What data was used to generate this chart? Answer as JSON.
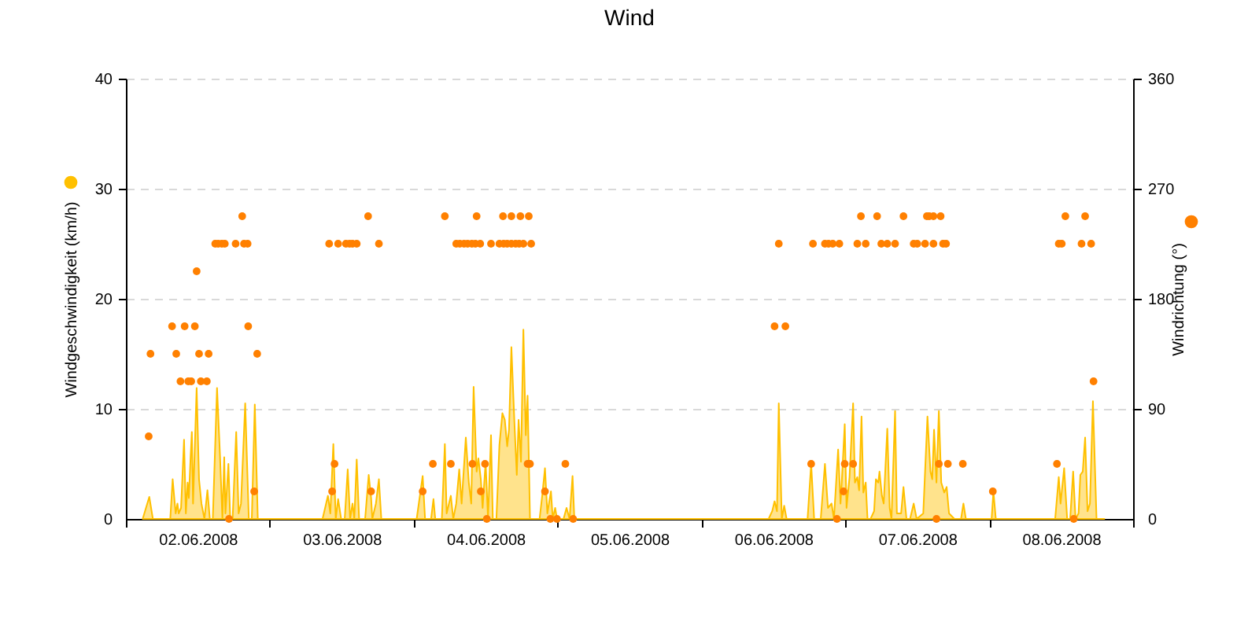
{
  "chart_data": {
    "type": "area",
    "title": "Wind",
    "legend": "left",
    "xlim": [
      "2008-06-02T00:00",
      "2008-06-09T00:00"
    ],
    "xticks": [
      {
        "value": "2008-06-02T00:00",
        "label": null
      },
      {
        "value": "2008-06-02T12:00",
        "label": "02.06.2008"
      },
      {
        "value": "2008-06-03T00:00",
        "label": null
      },
      {
        "value": "2008-06-03T12:00",
        "label": "03.06.2008"
      },
      {
        "value": "2008-06-04T00:00",
        "label": null
      },
      {
        "value": "2008-06-04T12:00",
        "label": "04.06.2008"
      },
      {
        "value": "2008-06-05T00:00",
        "label": null
      },
      {
        "value": "2008-06-05T12:00",
        "label": "05.06.2008"
      },
      {
        "value": "2008-06-06T00:00",
        "label": null
      },
      {
        "value": "2008-06-06T12:00",
        "label": "06.06.2008"
      },
      {
        "value": "2008-06-07T00:00",
        "label": null
      },
      {
        "value": "2008-06-07T12:00",
        "label": "07.06.2008"
      },
      {
        "value": "2008-06-08T00:00",
        "label": null
      },
      {
        "value": "2008-06-08T12:00",
        "label": "08.06.2008"
      },
      {
        "value": "2008-06-09T00:00",
        "label": null
      }
    ],
    "ylim": [
      0,
      40
    ],
    "yticks": [
      0,
      10,
      20,
      30,
      40
    ],
    "y2lim": [
      0,
      360
    ],
    "y2ticks": [
      0,
      90,
      180,
      270,
      360
    ],
    "grid": "y",
    "series": [
      {
        "name": "Windgeschwindigkeit (km/h)",
        "color": "#ffc000",
        "x": [
          "2008-06-02T02:48",
          "2008-06-02T03:54",
          "2008-06-02T04:30",
          "2008-06-02T07:24",
          "2008-06-02T07:48",
          "2008-06-02T08:18",
          "2008-06-02T08:36",
          "2008-06-02T08:48",
          "2008-06-02T09:12",
          "2008-06-02T09:42",
          "2008-06-02T10:00",
          "2008-06-02T10:18",
          "2008-06-02T10:30",
          "2008-06-02T10:48",
          "2008-06-02T11:00",
          "2008-06-02T11:12",
          "2008-06-02T11:48",
          "2008-06-02T12:12",
          "2008-06-02T12:36",
          "2008-06-02T13:06",
          "2008-06-02T13:36",
          "2008-06-02T14:00",
          "2008-06-02T14:30",
          "2008-06-02T15:12",
          "2008-06-02T15:42",
          "2008-06-02T16:06",
          "2008-06-02T16:24",
          "2008-06-02T16:36",
          "2008-06-02T17:06",
          "2008-06-02T17:24",
          "2008-06-02T17:48",
          "2008-06-02T18:24",
          "2008-06-02T18:48",
          "2008-06-02T19:12",
          "2008-06-02T19:54",
          "2008-06-02T20:30",
          "2008-06-02T21:00",
          "2008-06-02T21:30",
          "2008-06-02T22:00",
          "2008-06-03T08:48",
          "2008-06-03T09:42",
          "2008-06-03T10:06",
          "2008-06-03T10:36",
          "2008-06-03T11:00",
          "2008-06-03T11:24",
          "2008-06-03T11:54",
          "2008-06-03T12:30",
          "2008-06-03T13:00",
          "2008-06-03T13:24",
          "2008-06-03T13:48",
          "2008-06-03T14:06",
          "2008-06-03T14:30",
          "2008-06-03T14:54",
          "2008-06-03T15:54",
          "2008-06-03T16:30",
          "2008-06-03T16:54",
          "2008-06-03T17:06",
          "2008-06-03T17:42",
          "2008-06-03T18:12",
          "2008-06-03T18:36",
          "2008-06-04T00:30",
          "2008-06-04T01:30",
          "2008-06-04T01:54",
          "2008-06-04T02:54",
          "2008-06-04T03:18",
          "2008-06-04T03:36",
          "2008-06-04T04:42",
          "2008-06-04T05:12",
          "2008-06-04T05:30",
          "2008-06-04T06:12",
          "2008-06-04T06:36",
          "2008-06-04T07:06",
          "2008-06-04T07:36",
          "2008-06-04T08:00",
          "2008-06-04T08:42",
          "2008-06-04T09:12",
          "2008-06-04T09:36",
          "2008-06-04T10:00",
          "2008-06-04T10:30",
          "2008-06-04T10:48",
          "2008-06-04T11:12",
          "2008-06-04T11:30",
          "2008-06-04T12:00",
          "2008-06-04T12:24",
          "2008-06-04T12:54",
          "2008-06-04T13:12",
          "2008-06-04T13:48",
          "2008-06-04T14:18",
          "2008-06-04T14:48",
          "2008-06-04T15:12",
          "2008-06-04T15:36",
          "2008-06-04T15:54",
          "2008-06-04T16:18",
          "2008-06-04T16:48",
          "2008-06-04T17:12",
          "2008-06-04T17:30",
          "2008-06-04T17:54",
          "2008-06-04T18:18",
          "2008-06-04T18:42",
          "2008-06-04T19:00",
          "2008-06-04T19:24",
          "2008-06-04T21:00",
          "2008-06-04T21:24",
          "2008-06-04T21:54",
          "2008-06-04T22:18",
          "2008-06-04T22:54",
          "2008-06-04T23:12",
          "2008-06-04T23:36",
          "2008-06-04T23:54",
          "2008-06-05T01:00",
          "2008-06-05T01:30",
          "2008-06-05T02:00",
          "2008-06-05T02:30",
          "2008-06-05T02:48",
          "2008-06-06T11:12",
          "2008-06-06T11:48",
          "2008-06-06T12:12",
          "2008-06-06T12:36",
          "2008-06-06T12:54",
          "2008-06-06T13:24",
          "2008-06-06T13:48",
          "2008-06-06T14:12",
          "2008-06-06T17:42",
          "2008-06-06T18:18",
          "2008-06-06T18:48",
          "2008-06-06T19:54",
          "2008-06-06T20:36",
          "2008-06-06T21:06",
          "2008-06-06T21:42",
          "2008-06-06T22:06",
          "2008-06-06T22:48",
          "2008-06-06T23:12",
          "2008-06-06T23:24",
          "2008-06-06T23:54",
          "2008-06-07T00:12",
          "2008-06-07T00:42",
          "2008-06-07T01:18",
          "2008-06-07T01:36",
          "2008-06-07T02:00",
          "2008-06-07T02:18",
          "2008-06-07T02:42",
          "2008-06-07T03:00",
          "2008-06-07T03:24",
          "2008-06-07T03:42",
          "2008-06-07T04:12",
          "2008-06-07T04:48",
          "2008-06-07T05:06",
          "2008-06-07T05:30",
          "2008-06-07T05:42",
          "2008-06-07T06:06",
          "2008-06-07T06:24",
          "2008-06-07T07:00",
          "2008-06-07T07:24",
          "2008-06-07T07:42",
          "2008-06-07T08:18",
          "2008-06-07T08:36",
          "2008-06-07T09:18",
          "2008-06-07T09:42",
          "2008-06-07T10:12",
          "2008-06-07T10:48",
          "2008-06-07T11:24",
          "2008-06-07T11:54",
          "2008-06-07T13:00",
          "2008-06-07T13:42",
          "2008-06-07T14:12",
          "2008-06-07T14:30",
          "2008-06-07T14:48",
          "2008-06-07T15:12",
          "2008-06-07T15:36",
          "2008-06-07T16:00",
          "2008-06-07T16:30",
          "2008-06-07T16:54",
          "2008-06-07T17:18",
          "2008-06-07T18:12",
          "2008-06-07T19:18",
          "2008-06-07T19:42",
          "2008-06-07T20:06",
          "2008-06-08T00:24",
          "2008-06-08T00:42",
          "2008-06-08T01:06",
          "2008-06-08T10:24",
          "2008-06-08T11:00",
          "2008-06-08T11:36",
          "2008-06-08T11:54",
          "2008-06-08T12:30",
          "2008-06-08T13:00",
          "2008-06-08T13:30",
          "2008-06-08T14:00",
          "2008-06-08T14:24",
          "2008-06-08T14:54",
          "2008-06-08T15:12",
          "2008-06-08T15:36",
          "2008-06-08T16:00",
          "2008-06-08T16:24",
          "2008-06-08T16:48",
          "2008-06-08T17:18",
          "2008-06-08T17:54",
          "2008-06-08T19:12"
        ],
        "values": [
          0,
          2.0,
          0,
          0,
          3.6,
          0.5,
          1.4,
          0.5,
          1.0,
          7.2,
          0.5,
          3.3,
          1.9,
          5.7,
          7.9,
          1.4,
          11.9,
          3.6,
          1.4,
          0,
          2.6,
          0,
          0,
          11.9,
          5.7,
          0,
          5.6,
          0.5,
          5.0,
          0,
          0,
          7.9,
          0.5,
          1.4,
          10.5,
          0,
          0,
          10.4,
          0,
          0,
          2.1,
          0.5,
          6.8,
          0,
          1.8,
          0,
          0,
          4.5,
          0,
          1.4,
          0,
          5.4,
          0,
          0,
          4.0,
          1.9,
          0,
          1.4,
          3.6,
          0,
          0,
          3.9,
          0,
          0,
          1.8,
          0,
          0,
          6.8,
          0.5,
          2.1,
          0,
          1.4,
          4.5,
          1.4,
          7.4,
          3.3,
          1.4,
          12.0,
          4.3,
          5.5,
          3.6,
          1.0,
          5.2,
          0,
          7.6,
          0,
          0,
          6.7,
          9.6,
          9.0,
          6.6,
          8.1,
          15.6,
          8.8,
          4.0,
          9.0,
          5.2,
          17.2,
          7.6,
          11.2,
          0,
          0,
          1.9,
          4.6,
          0.5,
          2.5,
          0,
          1.0,
          0,
          0,
          1.0,
          0,
          3.9,
          0,
          0,
          0.7,
          1.6,
          0.7,
          10.5,
          0,
          1.2,
          0,
          0,
          5.0,
          0,
          0,
          5.0,
          1.0,
          1.4,
          0,
          6.3,
          1.4,
          3.3,
          8.6,
          1.0,
          3.8,
          10.5,
          3.3,
          3.8,
          2.6,
          9.3,
          2.4,
          3.3,
          0,
          0,
          0.7,
          3.6,
          3.3,
          4.3,
          2.1,
          1.4,
          8.2,
          1.0,
          0,
          9.8,
          0.5,
          0.5,
          2.9,
          0,
          0,
          1.4,
          0,
          0.5,
          9.3,
          4.3,
          3.6,
          8.1,
          3.3,
          9.8,
          3.3,
          2.4,
          2.9,
          0.5,
          0,
          0,
          1.4,
          0,
          0,
          2.5,
          0,
          0,
          0,
          3.8,
          1.4,
          4.6,
          0,
          0,
          4.3,
          0,
          0.5,
          4.0,
          4.3,
          7.4,
          0.7,
          1.4,
          10.7,
          0,
          0
        ]
      },
      {
        "name": "Windrichtung (°)",
        "type": "scatter",
        "axis": "y2",
        "color": "#ff8000",
        "x": [
          "2008-06-02T03:48",
          "2008-06-02T04:06",
          "2008-06-02T07:42",
          "2008-06-02T08:24",
          "2008-06-02T09:06",
          "2008-06-02T09:48",
          "2008-06-02T10:24",
          "2008-06-02T10:54",
          "2008-06-02T11:30",
          "2008-06-02T11:48",
          "2008-06-02T12:12",
          "2008-06-02T12:30",
          "2008-06-02T13:30",
          "2008-06-02T13:48",
          "2008-06-02T14:54",
          "2008-06-02T15:24",
          "2008-06-02T16:00",
          "2008-06-02T16:30",
          "2008-06-02T17:12",
          "2008-06-02T18:18",
          "2008-06-02T19:24",
          "2008-06-02T19:42",
          "2008-06-02T20:18",
          "2008-06-02T20:24",
          "2008-06-02T21:24",
          "2008-06-02T21:54",
          "2008-06-03T09:54",
          "2008-06-03T10:24",
          "2008-06-03T10:48",
          "2008-06-03T11:24",
          "2008-06-03T12:42",
          "2008-06-03T13:18",
          "2008-06-03T13:48",
          "2008-06-03T14:30",
          "2008-06-03T16:24",
          "2008-06-03T16:54",
          "2008-06-03T18:12",
          "2008-06-04T01:30",
          "2008-06-04T03:12",
          "2008-06-04T05:12",
          "2008-06-04T06:12",
          "2008-06-04T07:06",
          "2008-06-04T07:42",
          "2008-06-04T08:24",
          "2008-06-04T09:00",
          "2008-06-04T09:42",
          "2008-06-04T09:48",
          "2008-06-04T10:18",
          "2008-06-04T10:30",
          "2008-06-04T11:06",
          "2008-06-04T11:12",
          "2008-06-04T11:54",
          "2008-06-04T12:12",
          "2008-06-04T12:54",
          "2008-06-04T14:18",
          "2008-06-04T14:54",
          "2008-06-04T15:00",
          "2008-06-04T15:36",
          "2008-06-04T16:18",
          "2008-06-04T16:18",
          "2008-06-04T17:00",
          "2008-06-04T17:36",
          "2008-06-04T17:48",
          "2008-06-04T18:18",
          "2008-06-04T19:00",
          "2008-06-04T19:12",
          "2008-06-04T19:24",
          "2008-06-04T19:36",
          "2008-06-04T21:54",
          "2008-06-04T22:48",
          "2008-06-04T23:54",
          "2008-06-05T01:18",
          "2008-06-05T02:36",
          "2008-06-06T12:12",
          "2008-06-06T12:54",
          "2008-06-06T14:00",
          "2008-06-06T18:18",
          "2008-06-06T18:36",
          "2008-06-06T20:36",
          "2008-06-06T21:12",
          "2008-06-06T21:54",
          "2008-06-06T22:36",
          "2008-06-06T23:00",
          "2008-06-06T23:42",
          "2008-06-06T23:54",
          "2008-06-07T01:18",
          "2008-06-07T02:00",
          "2008-06-07T02:36",
          "2008-06-07T03:24",
          "2008-06-07T05:18",
          "2008-06-07T06:00",
          "2008-06-07T07:00",
          "2008-06-07T08:18",
          "2008-06-07T09:42",
          "2008-06-07T11:24",
          "2008-06-07T12:00",
          "2008-06-07T13:18",
          "2008-06-07T13:36",
          "2008-06-07T14:00",
          "2008-06-07T14:42",
          "2008-06-07T14:42",
          "2008-06-07T15:12",
          "2008-06-07T15:36",
          "2008-06-07T15:54",
          "2008-06-07T16:18",
          "2008-06-07T16:48",
          "2008-06-07T17:06",
          "2008-06-07T19:36",
          "2008-06-08T00:36",
          "2008-06-08T11:18",
          "2008-06-08T11:36",
          "2008-06-08T12:06",
          "2008-06-08T12:42",
          "2008-06-08T14:06",
          "2008-06-08T15:24",
          "2008-06-08T16:00",
          "2008-06-08T17:00",
          "2008-06-08T17:24"
        ],
        "values": [
          67.5,
          135,
          157.5,
          135,
          112.5,
          157.5,
          112.5,
          112.5,
          157.5,
          202.5,
          135,
          112.5,
          112.5,
          135,
          225,
          225,
          225,
          225,
          0,
          225,
          247.5,
          225,
          225,
          157.5,
          22.5,
          135,
          225,
          22.5,
          45,
          225,
          225,
          225,
          225,
          225,
          247.5,
          22.5,
          225,
          22.5,
          45,
          247.5,
          45,
          225,
          225,
          225,
          225,
          225,
          45,
          225,
          247.5,
          225,
          22.5,
          45,
          0,
          225,
          225,
          247.5,
          225,
          225,
          225,
          247.5,
          225,
          225,
          247.5,
          225,
          45,
          247.5,
          45,
          225,
          22.5,
          0,
          0,
          45,
          0,
          157.5,
          225,
          157.5,
          45,
          225,
          225,
          225,
          225,
          0,
          225,
          22.5,
          45,
          45,
          225,
          247.5,
          225,
          247.5,
          225,
          225,
          225,
          247.5,
          225,
          225,
          225,
          247.5,
          247.5,
          247.5,
          225,
          0,
          45,
          247.5,
          225,
          225,
          45,
          45,
          22.5,
          45,
          225,
          225,
          247.5,
          0,
          225,
          247.5,
          225,
          112.5
        ]
      }
    ]
  }
}
